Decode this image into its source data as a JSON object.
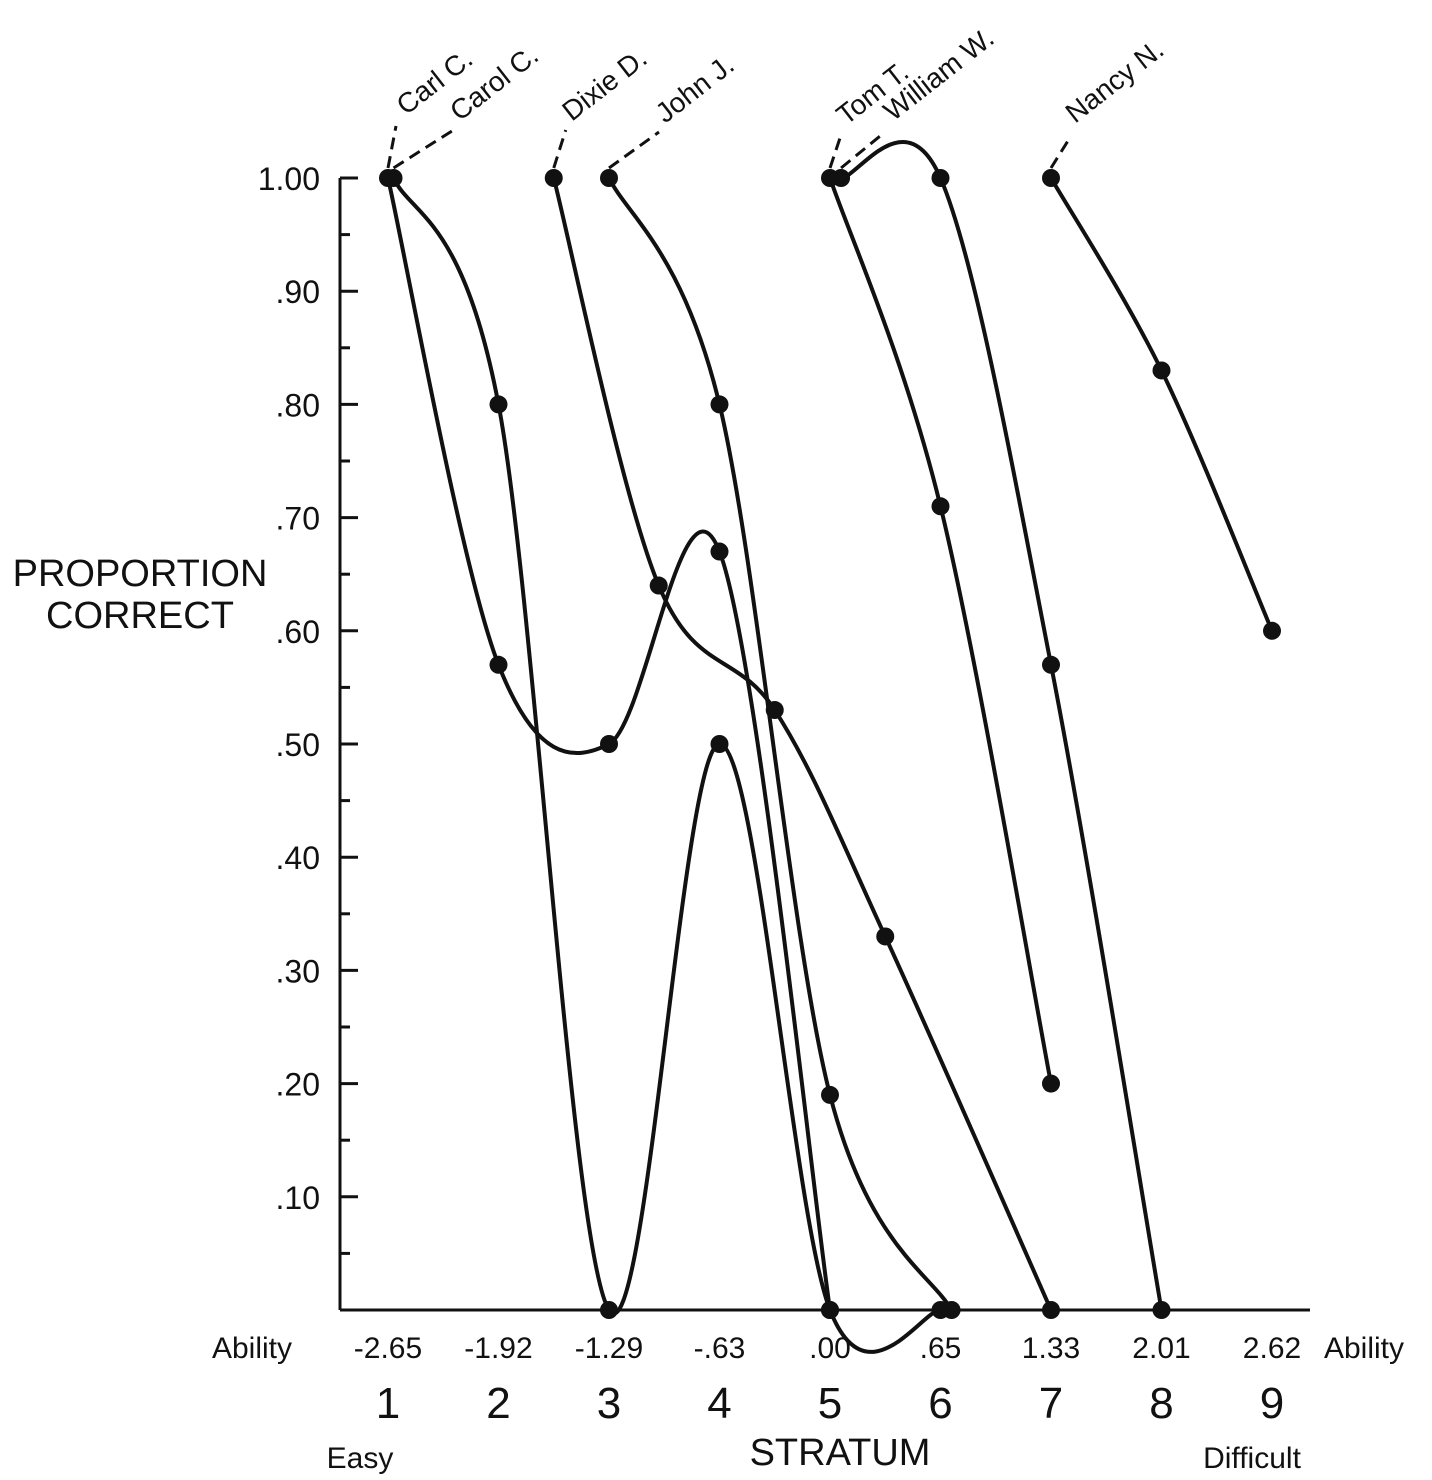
{
  "chart_data": {
    "type": "line",
    "ylabel_line1": "PROPORTION",
    "ylabel_line2": "CORRECT",
    "xlabel": "STRATUM",
    "x_ability_label": "Ability",
    "x_easy_label": "Easy",
    "x_difficult_label": "Difficult",
    "ylim": [
      0,
      1.0
    ],
    "y_ticks": [
      {
        "value": 1.0,
        "label": "1.00"
      },
      {
        "value": 0.9,
        "label": ".90"
      },
      {
        "value": 0.8,
        "label": ".80"
      },
      {
        "value": 0.7,
        "label": ".70"
      },
      {
        "value": 0.6,
        "label": ".60"
      },
      {
        "value": 0.5,
        "label": ".50"
      },
      {
        "value": 0.4,
        "label": ".40"
      },
      {
        "value": 0.3,
        "label": ".30"
      },
      {
        "value": 0.2,
        "label": ".20"
      },
      {
        "value": 0.1,
        "label": ".10"
      }
    ],
    "strata": [
      "1",
      "2",
      "3",
      "4",
      "5",
      "6",
      "7",
      "8",
      "9"
    ],
    "ability_labels": [
      "-2.65",
      "-1.92",
      "-1.29",
      "-.63",
      ".00",
      ".65",
      "1.33",
      "2.01",
      "2.62"
    ],
    "ability_values": [
      -2.65,
      -1.92,
      -1.29,
      -0.63,
      0.0,
      0.65,
      1.33,
      2.01,
      2.62
    ],
    "series": [
      {
        "name": "Carl C.",
        "points": [
          [
            1,
            1.0
          ],
          [
            2,
            0.57
          ],
          [
            3,
            0.5
          ],
          [
            4,
            0.67
          ],
          [
            5,
            0.0
          ]
        ]
      },
      {
        "name": "Carol C.",
        "points": [
          [
            1.05,
            1.0
          ],
          [
            2,
            0.8
          ],
          [
            3,
            0.0
          ],
          [
            4,
            0.5
          ],
          [
            5,
            0.0
          ],
          [
            6,
            0.0
          ]
        ]
      },
      {
        "name": "Dixie D.",
        "points": [
          [
            2.5,
            1.0
          ],
          [
            3.45,
            0.64
          ],
          [
            4.5,
            0.53
          ],
          [
            5.5,
            0.33
          ],
          [
            7,
            0.0
          ]
        ]
      },
      {
        "name": "John J.",
        "points": [
          [
            3,
            1.0
          ],
          [
            4,
            0.8
          ],
          [
            5,
            0.19
          ],
          [
            6.1,
            0.0
          ]
        ]
      },
      {
        "name": "Tom T.",
        "points": [
          [
            5,
            1.0
          ],
          [
            6,
            0.71
          ],
          [
            7,
            0.2
          ]
        ]
      },
      {
        "name": "William W.",
        "points": [
          [
            5.1,
            1.0
          ],
          [
            6,
            1.0
          ],
          [
            7,
            0.57
          ],
          [
            8,
            0.0
          ]
        ]
      },
      {
        "name": "Nancy N.",
        "points": [
          [
            7,
            1.0
          ],
          [
            8,
            0.83
          ],
          [
            9,
            0.6
          ]
        ]
      }
    ]
  }
}
